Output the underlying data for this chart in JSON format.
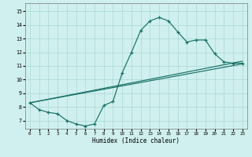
{
  "xlabel": "Humidex (Indice chaleur)",
  "bg_color": "#cff0ee",
  "grid_color": "#aad8d5",
  "line_color": "#1a7068",
  "xlim": [
    -0.5,
    23.5
  ],
  "ylim": [
    6.4,
    15.6
  ],
  "xticks": [
    0,
    1,
    2,
    3,
    4,
    5,
    6,
    7,
    8,
    9,
    10,
    11,
    12,
    13,
    14,
    15,
    16,
    17,
    18,
    19,
    20,
    21,
    22,
    23
  ],
  "yticks": [
    7,
    8,
    9,
    10,
    11,
    12,
    13,
    14,
    15
  ],
  "line1_x": [
    0,
    1,
    2,
    3,
    4,
    5,
    6,
    7,
    8,
    9,
    10,
    11,
    12,
    13,
    14,
    15,
    16,
    17,
    18,
    19,
    20,
    21,
    22,
    23
  ],
  "line1_y": [
    8.3,
    7.8,
    7.6,
    7.5,
    7.0,
    6.75,
    6.6,
    6.75,
    8.1,
    8.4,
    10.5,
    12.0,
    13.6,
    14.3,
    14.55,
    14.3,
    13.5,
    12.75,
    12.9,
    12.9,
    11.9,
    11.3,
    11.2,
    11.2
  ],
  "line2_x": [
    0,
    1,
    2,
    3,
    4,
    5,
    6,
    7,
    8,
    9,
    10,
    11,
    12,
    13,
    14,
    15,
    16,
    17,
    18,
    19,
    20,
    21,
    22,
    23
  ],
  "line2_y": [
    8.3,
    7.8,
    7.6,
    7.5,
    7.0,
    6.75,
    6.6,
    6.75,
    8.1,
    8.4,
    10.5,
    12.0,
    13.6,
    14.3,
    14.55,
    14.3,
    13.5,
    12.75,
    12.9,
    12.9,
    11.9,
    11.3,
    11.2,
    11.2
  ],
  "line3_x": [
    0,
    23
  ],
  "line3_y": [
    8.3,
    11.25
  ],
  "line4_x": [
    0,
    23
  ],
  "line4_y": [
    8.3,
    11.2
  ]
}
